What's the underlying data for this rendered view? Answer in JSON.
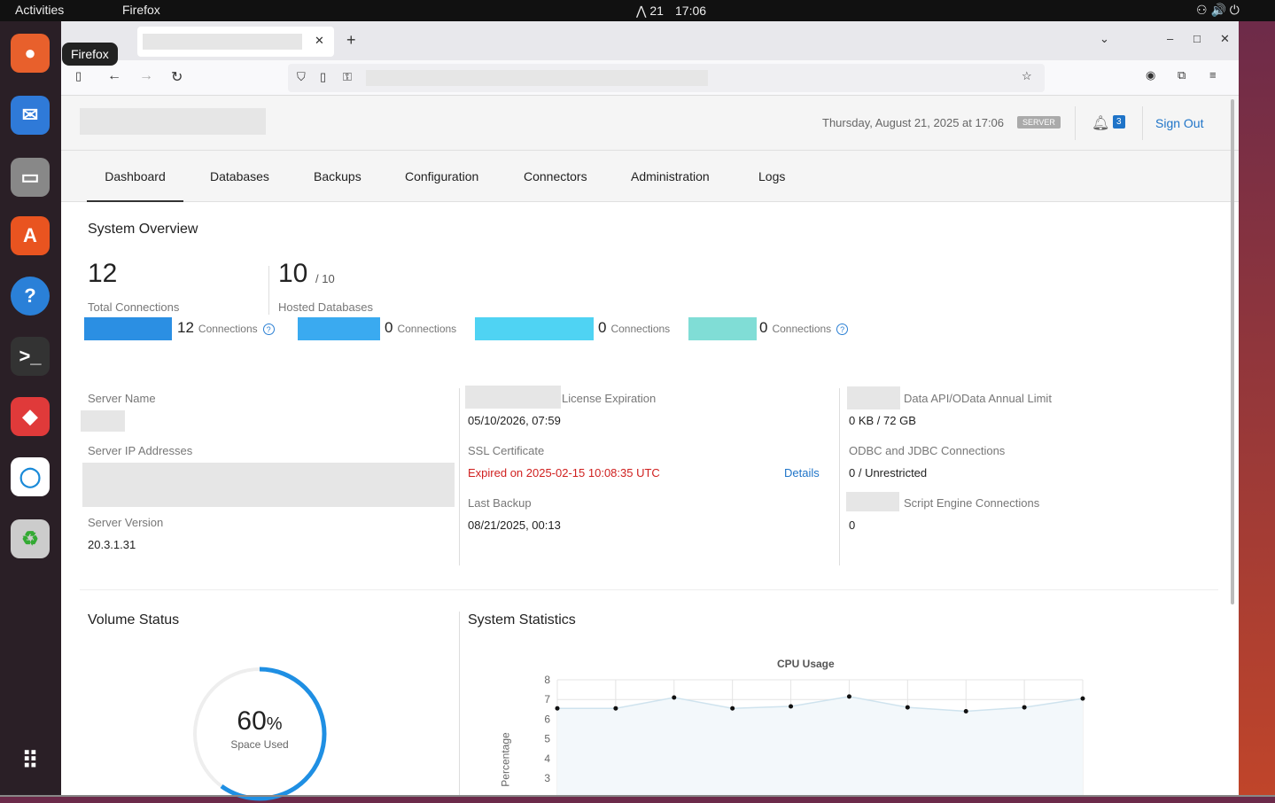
{
  "os": {
    "activities": "Activities",
    "app": "Firefox",
    "clock": "17:06",
    "workspace": "21",
    "tooltip": "Firefox"
  },
  "header": {
    "datetime": "Thursday, August 21, 2025 at 17:06",
    "server_badge": "SERVER",
    "notifications": "3",
    "sign_out": "Sign Out"
  },
  "tabs": [
    "Dashboard",
    "Databases",
    "Backups",
    "Configuration",
    "Connectors",
    "Administration",
    "Logs"
  ],
  "overview": {
    "title": "System Overview",
    "total_connections": "12",
    "total_connections_label": "Total Connections",
    "hosted": "10",
    "hosted_max": "/ 10",
    "hosted_label": "Hosted Databases"
  },
  "connections": [
    {
      "count": "12",
      "label": "Connections",
      "color": "#2b8fe3"
    },
    {
      "count": "0",
      "label": "Connections",
      "color": "#3aaaf0"
    },
    {
      "count": "0",
      "label": "Connections",
      "color": "#4fd3f3"
    },
    {
      "count": "0",
      "label": "Connections",
      "color": "#80ddd6"
    }
  ],
  "info": {
    "server_name_label": "Server Name",
    "server_ip_label": "Server IP Addresses",
    "server_version_label": "Server Version",
    "server_version": "20.3.1.31",
    "license_label": "License Expiration",
    "license": "05/10/2026, 07:59",
    "ssl_label": "SSL Certificate",
    "ssl": "Expired on 2025-02-15 10:08:35 UTC",
    "ssl_details": "Details",
    "backup_label": "Last Backup",
    "backup": "08/21/2025, 00:13",
    "api_label": "Data API/OData Annual Limit",
    "api": "0 KB / 72 GB",
    "odbc_label": "ODBC and JDBC Connections",
    "odbc": "0 / Unrestricted",
    "script_label": "Script Engine Connections",
    "script": "0"
  },
  "volume": {
    "title": "Volume Status",
    "percent": "60",
    "unit": "%",
    "label": "Space Used",
    "fraction": 0.6
  },
  "stats": {
    "title": "System Statistics"
  },
  "chart_data": {
    "type": "line",
    "title": "CPU Usage",
    "ylabel": "Percentage",
    "ylim": [
      2,
      8
    ],
    "yticks": [
      3,
      4,
      5,
      6,
      7,
      8
    ],
    "grid": true,
    "values": [
      6.55,
      6.55,
      7.1,
      6.55,
      6.65,
      7.15,
      6.6,
      6.4,
      6.6,
      7.05
    ]
  }
}
